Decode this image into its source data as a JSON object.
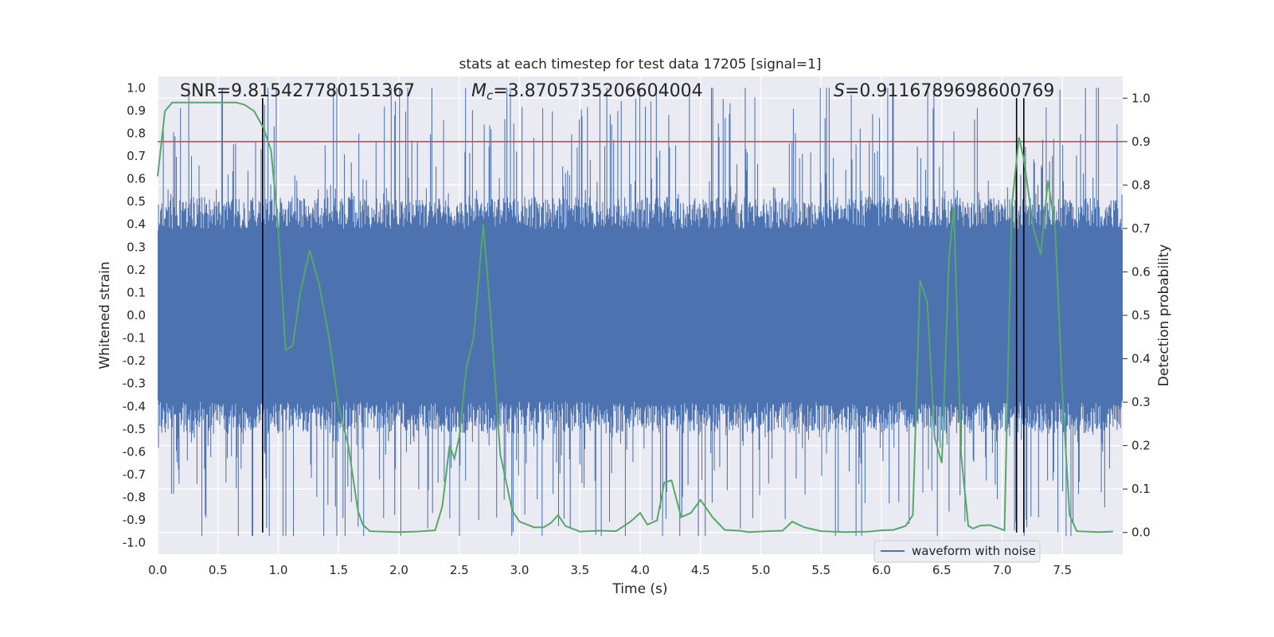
{
  "chart_data": {
    "type": "line",
    "title": "stats at each timestep for test data 17205 [signal=1]",
    "xlabel": "Time (s)",
    "ylabel_left": "Whitened strain",
    "ylabel_right": "Detection probability",
    "xlim": [
      0.0,
      8.0
    ],
    "ylim_left": [
      -1.05,
      1.05
    ],
    "ylim_right": [
      -0.05,
      1.05
    ],
    "x_ticks": [
      0.0,
      0.5,
      1.0,
      1.5,
      2.0,
      2.5,
      3.0,
      3.5,
      4.0,
      4.5,
      5.0,
      5.5,
      6.0,
      6.5,
      7.0,
      7.5
    ],
    "x_tick_labels": [
      "0.0",
      "0.5",
      "1.0",
      "1.5",
      "2.0",
      "2.5",
      "3.0",
      "3.5",
      "4.0",
      "4.5",
      "5.0",
      "5.5",
      "6.0",
      "6.5",
      "7.0",
      "7.5"
    ],
    "y_left_ticks": [
      1.0,
      0.9,
      0.8,
      0.7,
      0.6,
      0.5,
      0.4,
      0.3,
      0.2,
      0.1,
      0.0,
      -0.1,
      -0.2,
      -0.3,
      -0.4,
      -0.5,
      -0.6,
      -0.7,
      -0.8,
      -0.9,
      -1.0
    ],
    "y_left_tick_labels": [
      "1.0",
      "0.9",
      "0.8",
      "0.7",
      "0.6",
      "0.5",
      "0.4",
      "0.3",
      "0.2",
      "0.1",
      "0.0",
      "-0.1",
      "-0.2",
      "-0.3",
      "-0.4",
      "-0.5",
      "-0.6",
      "-0.7",
      "-0.8",
      "-0.9",
      "-1.0"
    ],
    "y_right_ticks": [
      1.0,
      0.9,
      0.8,
      0.7,
      0.6,
      0.5,
      0.4,
      0.3,
      0.2,
      0.1,
      0.0
    ],
    "y_right_tick_labels": [
      "1.0",
      "0.9",
      "0.8",
      "0.7",
      "0.6",
      "0.5",
      "0.4",
      "0.3",
      "0.2",
      "0.1",
      "0.0"
    ],
    "annotations": {
      "snr": "SNR=9.815427780151367",
      "mc_symbol": "M",
      "mc_sub": "c",
      "mc_value": "=3.8705735206604004",
      "s_symbol": "S",
      "s_value": "=0.9116789698600769"
    },
    "threshold_line": {
      "axis": "right",
      "value": 0.9,
      "color": "#c44e52"
    },
    "vertical_lines": [
      0.87,
      7.12,
      7.18
    ],
    "legend": {
      "label": "waveform with noise",
      "location": "lower-right"
    },
    "series": [
      {
        "name": "waveform with noise",
        "axis": "left",
        "color": "#4c72b0",
        "description": "dense whitened strain noise, spanning roughly -1.0 to 1.0",
        "envelope_core": 0.38,
        "peak_max": 1.0,
        "peak_min": -0.97
      },
      {
        "name": "detection probability",
        "axis": "right",
        "color": "#55a868",
        "x": [
          0.0,
          0.06,
          0.12,
          0.25,
          0.5,
          0.65,
          0.72,
          0.8,
          0.88,
          0.94,
          1.0,
          1.06,
          1.12,
          1.18,
          1.26,
          1.34,
          1.42,
          1.5,
          1.58,
          1.66,
          1.7,
          1.76,
          1.85,
          2.0,
          2.15,
          2.3,
          2.36,
          2.42,
          2.46,
          2.5,
          2.56,
          2.62,
          2.7,
          2.76,
          2.84,
          2.94,
          3.0,
          3.12,
          3.2,
          3.26,
          3.32,
          3.38,
          3.5,
          3.66,
          3.8,
          3.92,
          4.0,
          4.06,
          4.14,
          4.2,
          4.26,
          4.34,
          4.42,
          4.5,
          4.6,
          4.7,
          4.82,
          4.9,
          5.06,
          5.18,
          5.26,
          5.36,
          5.5,
          5.7,
          5.9,
          6.0,
          6.1,
          6.2,
          6.26,
          6.32,
          6.38,
          6.44,
          6.5,
          6.56,
          6.6,
          6.66,
          6.72,
          6.76,
          6.82,
          6.9,
          6.96,
          7.02,
          7.08,
          7.14,
          7.18,
          7.22,
          7.26,
          7.32,
          7.38,
          7.44,
          7.5,
          7.56,
          7.62,
          7.7,
          7.8,
          7.92
        ],
        "y": [
          0.82,
          0.97,
          0.99,
          0.99,
          0.99,
          0.99,
          0.985,
          0.97,
          0.93,
          0.88,
          0.7,
          0.42,
          0.43,
          0.55,
          0.65,
          0.57,
          0.45,
          0.29,
          0.2,
          0.05,
          0.018,
          0.003,
          0.002,
          0.001,
          0.002,
          0.005,
          0.06,
          0.2,
          0.17,
          0.22,
          0.38,
          0.45,
          0.71,
          0.5,
          0.18,
          0.05,
          0.025,
          0.012,
          0.012,
          0.022,
          0.04,
          0.015,
          0.002,
          0.004,
          0.003,
          0.025,
          0.045,
          0.018,
          0.028,
          0.115,
          0.12,
          0.035,
          0.045,
          0.075,
          0.035,
          0.006,
          0.004,
          0.001,
          0.003,
          0.004,
          0.025,
          0.012,
          0.003,
          0.001,
          0.002,
          0.005,
          0.006,
          0.015,
          0.04,
          0.58,
          0.53,
          0.22,
          0.16,
          0.63,
          0.75,
          0.18,
          0.015,
          0.009,
          0.016,
          0.017,
          0.011,
          0.005,
          0.75,
          0.91,
          0.86,
          0.78,
          0.7,
          0.64,
          0.81,
          0.7,
          0.32,
          0.04,
          0.003,
          0.002,
          0.001,
          0.002
        ]
      }
    ]
  }
}
